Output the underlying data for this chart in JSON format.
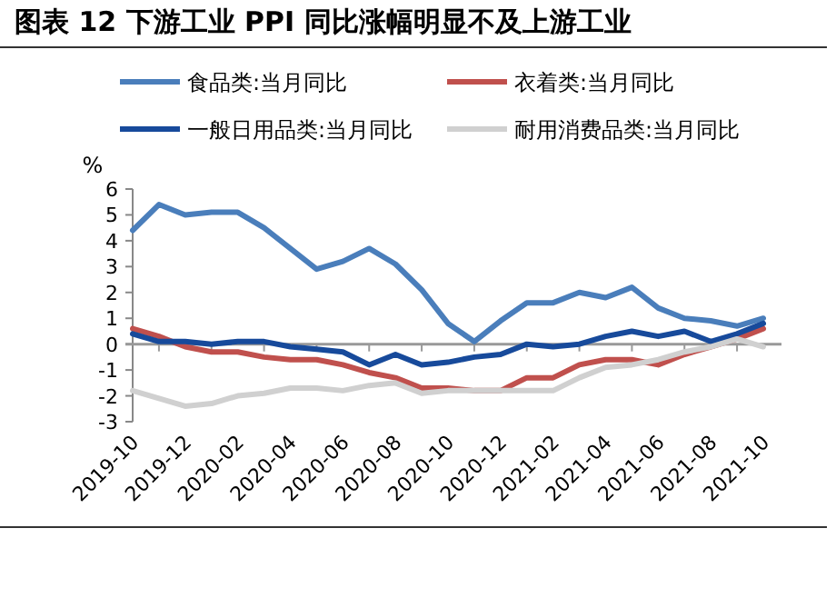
{
  "chart_data": {
    "type": "line",
    "title": "图表 12 下游工业 PPI 同比涨幅明显不及上游工业",
    "ylabel": "%",
    "categories": [
      "2019-10",
      null,
      "2019-12",
      null,
      "2020-02",
      null,
      "2020-04",
      null,
      "2020-06",
      null,
      "2020-08",
      null,
      "2020-10",
      null,
      "2020-12",
      null,
      "2021-02",
      null,
      "2021-04",
      null,
      "2021-06",
      null,
      "2021-08",
      null,
      "2021-10"
    ],
    "series": [
      {
        "name": "食品类:当月同比",
        "color": "#4a7ebb",
        "values": [
          4.4,
          5.4,
          5.0,
          5.1,
          5.1,
          4.5,
          3.7,
          2.9,
          3.2,
          3.7,
          3.1,
          2.1,
          0.8,
          0.1,
          0.9,
          1.6,
          1.6,
          2.0,
          1.8,
          2.2,
          1.4,
          1.0,
          0.9,
          0.7,
          1.0
        ]
      },
      {
        "name": "衣着类:当月同比",
        "color": "#c0504d",
        "values": [
          0.6,
          0.3,
          -0.1,
          -0.3,
          -0.3,
          -0.5,
          -0.6,
          -0.6,
          -0.8,
          -1.1,
          -1.3,
          -1.7,
          -1.7,
          -1.8,
          -1.8,
          -1.3,
          -1.3,
          -0.8,
          -0.6,
          -0.6,
          -0.8,
          -0.4,
          -0.1,
          0.2,
          0.6
        ]
      },
      {
        "name": "一般日用品类:当月同比",
        "color": "#174a9b",
        "values": [
          0.4,
          0.1,
          0.1,
          0.0,
          0.1,
          0.1,
          -0.1,
          -0.2,
          -0.3,
          -0.8,
          -0.4,
          -0.8,
          -0.7,
          -0.5,
          -0.4,
          0.0,
          -0.1,
          0.0,
          0.3,
          0.5,
          0.3,
          0.5,
          0.1,
          0.4,
          0.8
        ]
      },
      {
        "name": "耐用消费品类:当月同比",
        "color": "#d0d0d0",
        "values": [
          -1.8,
          -2.1,
          -2.4,
          -2.3,
          -2.0,
          -1.9,
          -1.7,
          -1.7,
          -1.8,
          -1.6,
          -1.5,
          -1.9,
          -1.8,
          -1.8,
          -1.8,
          -1.8,
          -1.8,
          -1.3,
          -0.9,
          -0.8,
          -0.6,
          -0.3,
          -0.1,
          0.2,
          -0.1
        ]
      }
    ],
    "ylim": [
      -3,
      6
    ],
    "yticks": [
      -3,
      -2,
      -1,
      0,
      1,
      2,
      3,
      4,
      5,
      6
    ],
    "legend": "top",
    "marker": "none",
    "line_style": "solid"
  }
}
